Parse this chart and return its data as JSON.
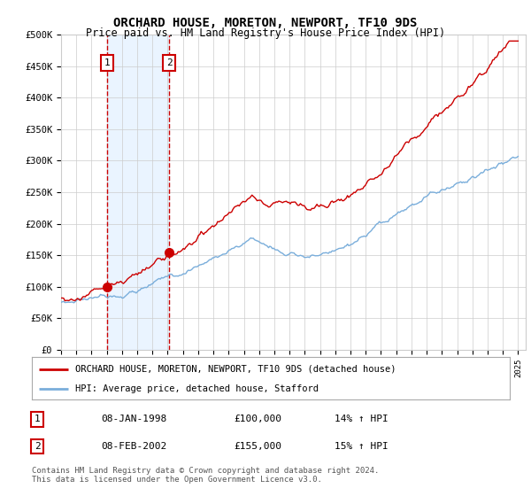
{
  "title": "ORCHARD HOUSE, MORETON, NEWPORT, TF10 9DS",
  "subtitle": "Price paid vs. HM Land Registry's House Price Index (HPI)",
  "ylim": [
    0,
    500000
  ],
  "yticks": [
    0,
    50000,
    100000,
    150000,
    200000,
    250000,
    300000,
    350000,
    400000,
    450000,
    500000
  ],
  "ytick_labels": [
    "£0",
    "£50K",
    "£100K",
    "£150K",
    "£200K",
    "£250K",
    "£300K",
    "£350K",
    "£400K",
    "£450K",
    "£500K"
  ],
  "sale1_date": 1998.03,
  "sale1_price": 100000,
  "sale1_label": "1",
  "sale1_text": "08-JAN-1998",
  "sale1_amount": "£100,000",
  "sale1_hpi": "14% ↑ HPI",
  "sale2_date": 2002.1,
  "sale2_price": 155000,
  "sale2_label": "2",
  "sale2_text": "08-FEB-2002",
  "sale2_amount": "£155,000",
  "sale2_hpi": "15% ↑ HPI",
  "hpi_color": "#7aaedb",
  "price_color": "#cc0000",
  "vline_color": "#cc0000",
  "shade_color": "#ddeeff",
  "legend_label_price": "ORCHARD HOUSE, MORETON, NEWPORT, TF10 9DS (detached house)",
  "legend_label_hpi": "HPI: Average price, detached house, Stafford",
  "footer": "Contains HM Land Registry data © Crown copyright and database right 2024.\nThis data is licensed under the Open Government Licence v3.0.",
  "background_color": "#ffffff",
  "grid_color": "#cccccc"
}
